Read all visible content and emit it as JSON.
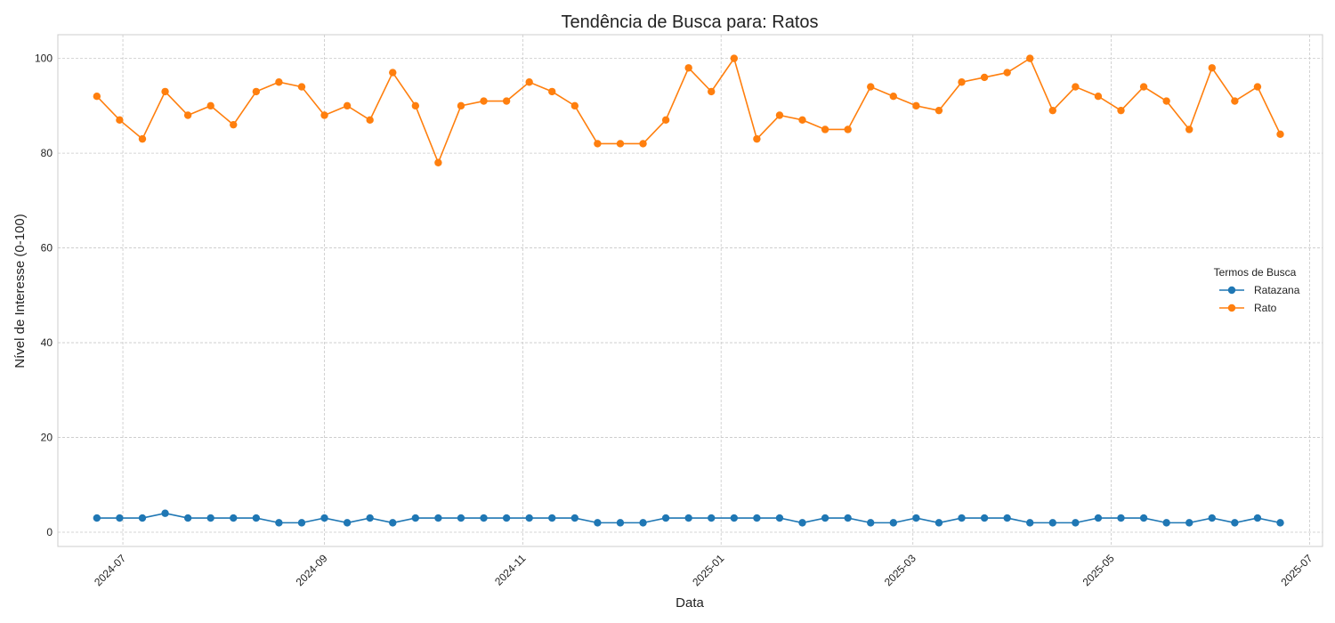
{
  "chart_data": {
    "type": "line",
    "title": "Tendência de Busca para: Ratos",
    "xlabel": "Data",
    "ylabel": "Nível de Interesse (0-100)",
    "ylim": [
      -3,
      105
    ],
    "yticks": [
      0,
      20,
      40,
      60,
      80,
      100
    ],
    "xticks": [
      "2024-07",
      "2024-09",
      "2024-11",
      "2025-01",
      "2025-03",
      "2025-05",
      "2025-07"
    ],
    "xlim": [
      "2024-06-11",
      "2025-07-05"
    ],
    "grid": true,
    "legend": {
      "title": "Termos de Busca",
      "position": "center-right"
    },
    "x": [
      "2024-06-23",
      "2024-06-30",
      "2024-07-07",
      "2024-07-14",
      "2024-07-21",
      "2024-07-28",
      "2024-08-04",
      "2024-08-11",
      "2024-08-18",
      "2024-08-25",
      "2024-09-01",
      "2024-09-08",
      "2024-09-15",
      "2024-09-22",
      "2024-09-29",
      "2024-10-06",
      "2024-10-13",
      "2024-10-20",
      "2024-10-27",
      "2024-11-03",
      "2024-11-10",
      "2024-11-17",
      "2024-11-24",
      "2024-12-01",
      "2024-12-08",
      "2024-12-15",
      "2024-12-22",
      "2024-12-29",
      "2025-01-05",
      "2025-01-12",
      "2025-01-19",
      "2025-01-26",
      "2025-02-02",
      "2025-02-09",
      "2025-02-16",
      "2025-02-23",
      "2025-03-02",
      "2025-03-09",
      "2025-03-16",
      "2025-03-23",
      "2025-03-30",
      "2025-04-06",
      "2025-04-13",
      "2025-04-20",
      "2025-04-27",
      "2025-05-04",
      "2025-05-11",
      "2025-05-18",
      "2025-05-25",
      "2025-06-01",
      "2025-06-08",
      "2025-06-15",
      "2025-06-22"
    ],
    "series": [
      {
        "name": "Ratazana",
        "color": "#1f77b4",
        "values": [
          3,
          3,
          3,
          4,
          3,
          3,
          3,
          3,
          2,
          2,
          3,
          2,
          3,
          2,
          3,
          3,
          3,
          3,
          3,
          3,
          3,
          3,
          2,
          2,
          2,
          3,
          3,
          3,
          3,
          3,
          3,
          2,
          3,
          3,
          2,
          2,
          3,
          2,
          3,
          3,
          3,
          2,
          2,
          2,
          3,
          3,
          3,
          2,
          2,
          3,
          2,
          3,
          2
        ]
      },
      {
        "name": "Rato",
        "color": "#ff7f0e",
        "values": [
          92,
          87,
          83,
          93,
          88,
          90,
          86,
          93,
          95,
          94,
          88,
          90,
          87,
          97,
          90,
          78,
          90,
          91,
          91,
          95,
          93,
          90,
          82,
          82,
          82,
          87,
          98,
          93,
          100,
          83,
          88,
          87,
          85,
          85,
          94,
          92,
          90,
          89,
          95,
          96,
          97,
          100,
          89,
          94,
          92,
          89,
          94,
          91,
          85,
          98,
          91,
          94,
          84
        ]
      }
    ]
  }
}
